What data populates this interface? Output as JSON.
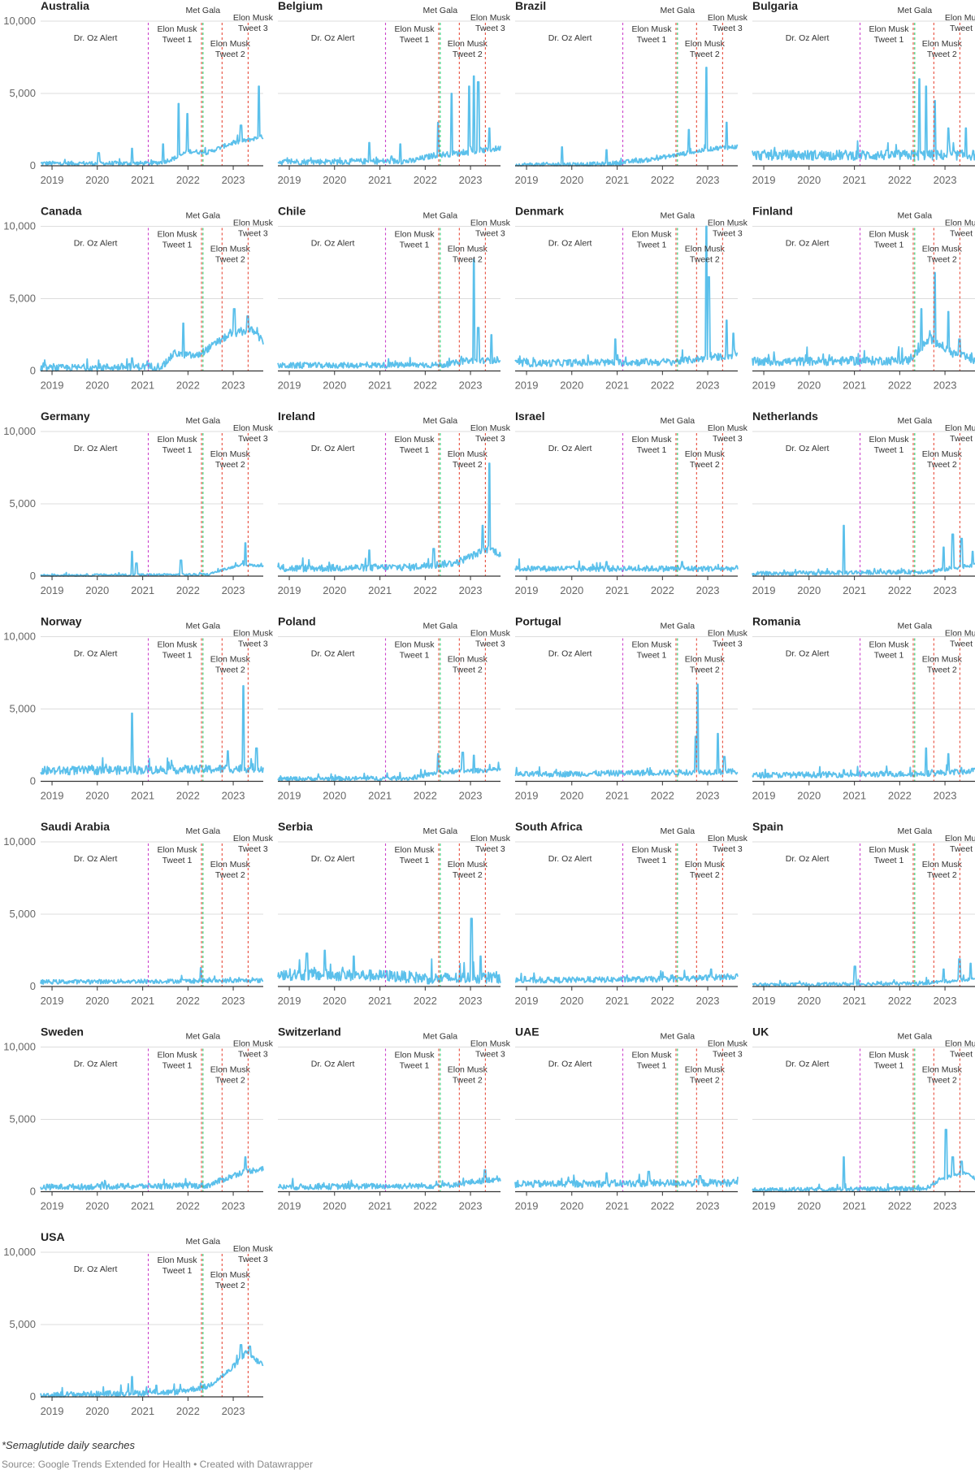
{
  "footnote": "*Semaglutide daily searches",
  "source": "Source: Google Trends Extended for Health • Created with Datawrapper",
  "colors": {
    "series": "#5bc0eb",
    "grid": "#dddddd",
    "axis": "#333333",
    "tick_text": "#666666",
    "title_text": "#222222",
    "annotation_text": "#333333",
    "dr_oz": "#cc44cc",
    "met_gala": "#2ecc71",
    "tweet1": "#e74c3c",
    "tweet2": "#e74c3c",
    "tweet3": "#e74c3c"
  },
  "chart_data": {
    "type": "line",
    "layout": "small-multiples",
    "ylim": [
      0,
      10000
    ],
    "yticks": [
      0,
      5000,
      10000
    ],
    "ytick_labels": [
      "0",
      "5,000",
      "10,000"
    ],
    "xlim": [
      "2018-10-01",
      "2023-08-31"
    ],
    "xticks": [
      "2019-01-01",
      "2020-01-01",
      "2021-01-01",
      "2022-01-01",
      "2023-01-01"
    ],
    "xtick_labels": [
      "2019",
      "2020",
      "2021",
      "2022",
      "2023"
    ],
    "events": [
      {
        "label": "Dr. Oz Alert",
        "date": "2021-02-15",
        "color_key": "dr_oz"
      },
      {
        "label": "Met Gala",
        "date": "2022-05-02",
        "color_key": "met_gala"
      },
      {
        "label": "Elon Musk Tweet 1",
        "date": "2022-04-20",
        "color_key": "tweet1"
      },
      {
        "label": "Elon Musk Tweet 2",
        "date": "2022-10-03",
        "color_key": "tweet2"
      },
      {
        "label": "Elon Musk Tweet 3",
        "date": "2023-05-01",
        "color_key": "tweet3"
      }
    ],
    "panels": [
      {
        "title": "Australia",
        "baseline": [
          [
            0,
            150
          ],
          [
            0.5,
            150
          ],
          [
            0.55,
            250
          ],
          [
            0.62,
            600
          ],
          [
            0.66,
            1000
          ],
          [
            0.75,
            900
          ],
          [
            0.85,
            1500
          ],
          [
            1,
            2000
          ]
        ],
        "noise": 150,
        "spikes": [
          [
            0.26,
            900
          ],
          [
            0.41,
            1200
          ],
          [
            0.55,
            1500
          ],
          [
            0.62,
            4300
          ],
          [
            0.66,
            3600
          ],
          [
            0.9,
            2800
          ],
          [
            0.98,
            5500
          ]
        ]
      },
      {
        "title": "Belgium",
        "baseline": [
          [
            0,
            250
          ],
          [
            0.6,
            300
          ],
          [
            0.7,
            700
          ],
          [
            0.85,
            900
          ],
          [
            1,
            1200
          ]
        ],
        "noise": 200,
        "spikes": [
          [
            0.41,
            1600
          ],
          [
            0.55,
            1500
          ],
          [
            0.72,
            3000
          ],
          [
            0.78,
            5000
          ],
          [
            0.86,
            5500
          ],
          [
            0.88,
            6200
          ],
          [
            0.9,
            5800
          ],
          [
            0.95,
            2600
          ]
        ]
      },
      {
        "title": "Brazil",
        "baseline": [
          [
            0,
            50
          ],
          [
            0.4,
            100
          ],
          [
            0.6,
            400
          ],
          [
            0.75,
            800
          ],
          [
            0.9,
            1200
          ],
          [
            1,
            1300
          ]
        ],
        "noise": 150,
        "spikes": [
          [
            0.21,
            1300
          ],
          [
            0.41,
            1100
          ],
          [
            0.78,
            2500
          ],
          [
            0.86,
            6800
          ],
          [
            0.95,
            3000
          ]
        ]
      },
      {
        "title": "Bulgaria",
        "baseline": [
          [
            0,
            700
          ],
          [
            1,
            700
          ]
        ],
        "noise": 350,
        "spikes": [
          [
            0.75,
            6000
          ],
          [
            0.78,
            5500
          ],
          [
            0.82,
            4500
          ],
          [
            0.88,
            2600
          ],
          [
            0.96,
            2600
          ]
        ]
      },
      {
        "title": "Canada",
        "baseline": [
          [
            0,
            150
          ],
          [
            0.55,
            300
          ],
          [
            0.6,
            1200
          ],
          [
            0.7,
            1000
          ],
          [
            0.85,
            2500
          ],
          [
            0.95,
            2800
          ],
          [
            1,
            2000
          ]
        ],
        "noise": 250,
        "spikes": [
          [
            0.41,
            900
          ],
          [
            0.64,
            3300
          ],
          [
            0.87,
            4300
          ],
          [
            0.93,
            3800
          ]
        ]
      },
      {
        "title": "Chile",
        "baseline": [
          [
            0,
            350
          ],
          [
            0.75,
            400
          ],
          [
            0.85,
            700
          ],
          [
            1,
            700
          ]
        ],
        "noise": 200,
        "spikes": [
          [
            0.88,
            7700
          ],
          [
            0.9,
            3000
          ],
          [
            0.96,
            2500
          ]
        ]
      },
      {
        "title": "Denmark",
        "baseline": [
          [
            0,
            500
          ],
          [
            0.7,
            600
          ],
          [
            1,
            1100
          ]
        ],
        "noise": 250,
        "spikes": [
          [
            0.45,
            2200
          ],
          [
            0.87,
            6500
          ],
          [
            0.86,
            10000
          ],
          [
            0.95,
            3500
          ],
          [
            0.98,
            2600
          ]
        ]
      },
      {
        "title": "Finland",
        "baseline": [
          [
            0,
            600
          ],
          [
            0.7,
            700
          ],
          [
            0.8,
            2200
          ],
          [
            0.9,
            1200
          ],
          [
            1,
            700
          ]
        ],
        "noise": 300,
        "spikes": [
          [
            0.76,
            4300
          ],
          [
            0.82,
            6800
          ],
          [
            0.88,
            4100
          ],
          [
            0.93,
            2200
          ]
        ]
      },
      {
        "title": "Germany",
        "baseline": [
          [
            0,
            50
          ],
          [
            0.75,
            100
          ],
          [
            0.9,
            800
          ],
          [
            1,
            700
          ]
        ],
        "noise": 80,
        "spikes": [
          [
            0.41,
            1700
          ],
          [
            0.43,
            900
          ],
          [
            0.63,
            1100
          ],
          [
            0.92,
            2300
          ]
        ]
      },
      {
        "title": "Ireland",
        "baseline": [
          [
            0,
            500
          ],
          [
            0.6,
            600
          ],
          [
            0.8,
            900
          ],
          [
            0.95,
            1900
          ],
          [
            1,
            1500
          ]
        ],
        "noise": 250,
        "spikes": [
          [
            0.41,
            1800
          ],
          [
            0.7,
            1900
          ],
          [
            0.92,
            3500
          ],
          [
            0.95,
            7800
          ]
        ]
      },
      {
        "title": "Israel",
        "baseline": [
          [
            0,
            500
          ],
          [
            1,
            500
          ]
        ],
        "noise": 200,
        "spikes": [
          [
            0.41,
            1000
          ],
          [
            0.75,
            1000
          ]
        ]
      },
      {
        "title": "Netherlands",
        "baseline": [
          [
            0,
            150
          ],
          [
            0.8,
            300
          ],
          [
            1,
            800
          ]
        ],
        "noise": 150,
        "spikes": [
          [
            0.41,
            3500
          ],
          [
            0.86,
            2000
          ],
          [
            0.9,
            2900
          ],
          [
            0.94,
            2600
          ],
          [
            0.99,
            1700
          ]
        ]
      },
      {
        "title": "Norway",
        "baseline": [
          [
            0,
            700
          ],
          [
            0.75,
            800
          ],
          [
            1,
            900
          ]
        ],
        "noise": 300,
        "spikes": [
          [
            0.41,
            4700
          ],
          [
            0.84,
            2100
          ],
          [
            0.91,
            6600
          ],
          [
            0.97,
            2300
          ]
        ]
      },
      {
        "title": "Poland",
        "baseline": [
          [
            0,
            150
          ],
          [
            0.6,
            200
          ],
          [
            0.72,
            600
          ],
          [
            1,
            800
          ]
        ],
        "noise": 150,
        "spikes": [
          [
            0.72,
            1900
          ],
          [
            0.83,
            2000
          ],
          [
            0.88,
            1800
          ]
        ]
      },
      {
        "title": "Portugal",
        "baseline": [
          [
            0,
            450
          ],
          [
            1,
            650
          ]
        ],
        "noise": 200,
        "spikes": [
          [
            0.81,
            3100
          ],
          [
            0.82,
            6700
          ],
          [
            0.91,
            3300
          ],
          [
            0.94,
            1700
          ]
        ]
      },
      {
        "title": "Romania",
        "baseline": [
          [
            0,
            400
          ],
          [
            0.75,
            500
          ],
          [
            1,
            700
          ]
        ],
        "noise": 200,
        "spikes": [
          [
            0.41,
            800
          ],
          [
            0.78,
            2300
          ],
          [
            0.88,
            1900
          ]
        ]
      },
      {
        "title": "Saudi Arabia",
        "baseline": [
          [
            0,
            300
          ],
          [
            1,
            400
          ]
        ],
        "noise": 150,
        "spikes": [
          [
            0.72,
            1300
          ]
        ]
      },
      {
        "title": "Serbia",
        "baseline": [
          [
            0,
            800
          ],
          [
            0.5,
            700
          ],
          [
            0.7,
            500
          ],
          [
            1,
            600
          ]
        ],
        "noise": 400,
        "spikes": [
          [
            0.13,
            2300
          ],
          [
            0.21,
            2500
          ],
          [
            0.34,
            2100
          ],
          [
            0.87,
            4700
          ],
          [
            0.91,
            2100
          ]
        ]
      },
      {
        "title": "South Africa",
        "baseline": [
          [
            0,
            400
          ],
          [
            0.75,
            500
          ],
          [
            1,
            700
          ]
        ],
        "noise": 200,
        "spikes": [
          [
            0.88,
            1200
          ]
        ]
      },
      {
        "title": "Spain",
        "baseline": [
          [
            0,
            100
          ],
          [
            0.75,
            200
          ],
          [
            1,
            500
          ]
        ],
        "noise": 120,
        "spikes": [
          [
            0.46,
            1400
          ],
          [
            0.86,
            1200
          ],
          [
            0.93,
            1900
          ],
          [
            0.98,
            1600
          ]
        ]
      },
      {
        "title": "Sweden",
        "baseline": [
          [
            0,
            300
          ],
          [
            0.75,
            400
          ],
          [
            0.9,
            1300
          ],
          [
            1,
            1600
          ]
        ],
        "noise": 200,
        "spikes": [
          [
            0.92,
            2400
          ]
        ]
      },
      {
        "title": "Switzerland",
        "baseline": [
          [
            0,
            300
          ],
          [
            0.75,
            400
          ],
          [
            1,
            900
          ]
        ],
        "noise": 200,
        "spikes": [
          [
            0.93,
            1500
          ]
        ]
      },
      {
        "title": "UAE",
        "baseline": [
          [
            0,
            500
          ],
          [
            1,
            600
          ]
        ],
        "noise": 250,
        "spikes": [
          [
            0.41,
            1300
          ],
          [
            0.6,
            1400
          ],
          [
            0.83,
            1100
          ]
        ]
      },
      {
        "title": "UK",
        "baseline": [
          [
            0,
            100
          ],
          [
            0.78,
            200
          ],
          [
            0.85,
            900
          ],
          [
            0.95,
            1300
          ],
          [
            1,
            900
          ]
        ],
        "noise": 150,
        "spikes": [
          [
            0.41,
            2400
          ],
          [
            0.87,
            4300
          ],
          [
            0.9,
            2400
          ],
          [
            0.94,
            2100
          ]
        ]
      },
      {
        "title": "USA",
        "baseline": [
          [
            0,
            100
          ],
          [
            0.6,
            300
          ],
          [
            0.75,
            700
          ],
          [
            0.85,
            1800
          ],
          [
            0.92,
            3000
          ],
          [
            1,
            2200
          ]
        ],
        "noise": 200,
        "spikes": [
          [
            0.41,
            1400
          ],
          [
            0.52,
            800
          ],
          [
            0.9,
            3600
          ],
          [
            0.94,
            3500
          ]
        ]
      }
    ]
  }
}
